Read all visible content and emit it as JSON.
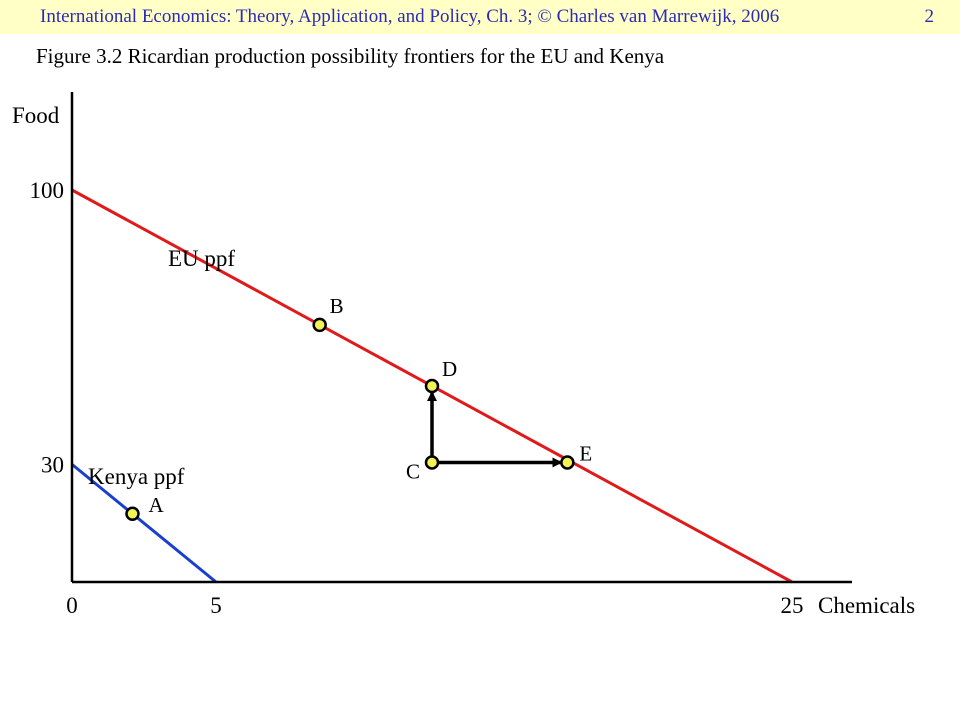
{
  "header": {
    "text": "International Economics: Theory, Application, and Policy, Ch. 3;  © Charles van Marrewijk, 2006",
    "page": "2"
  },
  "figure": {
    "title": "Figure 3.2 Ricardian production possibility frontiers for the EU and Kenya"
  },
  "colors": {
    "header_bg": "#ffffc6",
    "header_text": "#2b2bb8",
    "eu": "#e01a1a",
    "kenya": "#1a3fcf",
    "point_fill": "#f2f255",
    "axis": "#000000"
  },
  "chart_data": {
    "type": "line",
    "title": "Figure 3.2 Ricardian production possibility frontiers for the EU and Kenya",
    "xlabel": "Chemicals",
    "ylabel": "Food",
    "xlim": [
      0,
      27.5
    ],
    "ylim": [
      0,
      125
    ],
    "x_ticks": [
      0,
      5,
      25
    ],
    "y_ticks": [
      30,
      100
    ],
    "grid": false,
    "legend": "none",
    "series": [
      {
        "name": "EU ppf",
        "x": [
          0,
          25
        ],
        "y": [
          100,
          0
        ]
      },
      {
        "name": "Kenya ppf",
        "x": [
          0,
          5
        ],
        "y": [
          30,
          0
        ]
      }
    ],
    "points": [
      {
        "label": "A",
        "x": 2.1,
        "y": 17.4
      },
      {
        "label": "B",
        "x": 8.6,
        "y": 65.6
      },
      {
        "label": "C",
        "x": 12.5,
        "y": 30.5
      },
      {
        "label": "D",
        "x": 12.5,
        "y": 50
      },
      {
        "label": "E",
        "x": 17.2,
        "y": 30.5
      }
    ],
    "arrows": [
      {
        "from": "C",
        "to": "D"
      },
      {
        "from": "C",
        "to": "E"
      }
    ]
  }
}
